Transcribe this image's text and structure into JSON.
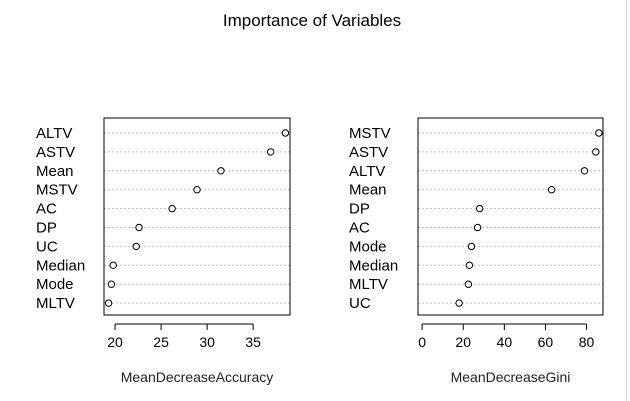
{
  "title": "Importance of Variables",
  "chart_data": [
    {
      "type": "scatter",
      "xlabel": "MeanDecreaseAccuracy",
      "xlim": [
        18.8,
        39
      ],
      "xticks": [
        20,
        25,
        30,
        35
      ],
      "categories": [
        "ALTV",
        "ASTV",
        "Mean",
        "MSTV",
        "AC",
        "DP",
        "UC",
        "Median",
        "Mode",
        "MLTV"
      ],
      "values": [
        38.5,
        36.9,
        31.5,
        28.9,
        26.2,
        22.6,
        22.3,
        19.8,
        19.6,
        19.3
      ]
    },
    {
      "type": "scatter",
      "xlabel": "MeanDecreaseGini",
      "xlim": [
        -2,
        88
      ],
      "xticks": [
        0,
        20,
        40,
        60,
        80
      ],
      "categories": [
        "MSTV",
        "ASTV",
        "ALTV",
        "Mean",
        "DP",
        "AC",
        "Mode",
        "Median",
        "MLTV",
        "UC"
      ],
      "values": [
        86,
        84.5,
        79,
        63,
        28,
        27,
        24,
        23,
        22.5,
        18
      ]
    }
  ]
}
